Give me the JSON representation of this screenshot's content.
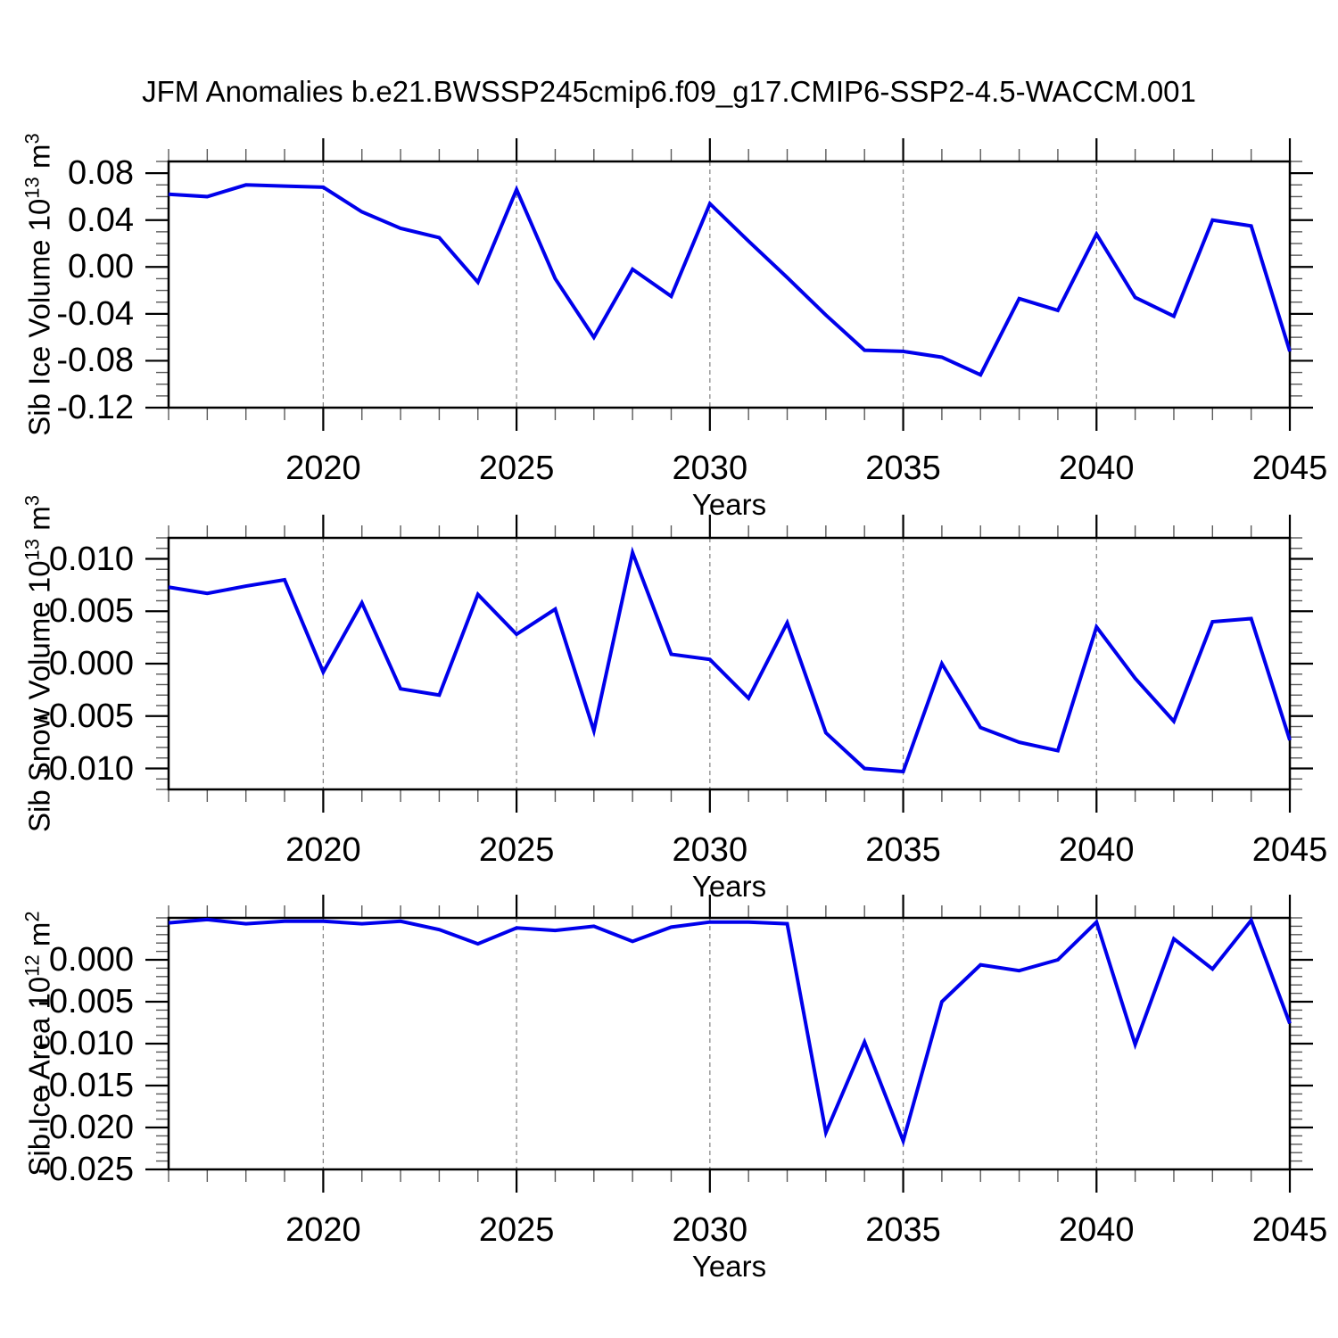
{
  "title": "JFM Anomalies b.e21.BWSSP245cmip6.f09_g17.CMIP6-SSP2-4.5-WACCM.001",
  "chart_data": {
    "type": "line",
    "title": "JFM Anomalies b.e21.BWSSP245cmip6.f09_g17.CMIP6-SSP2-4.5-WACCM.001",
    "xlabel": "Years",
    "line_color": "#0000EB",
    "grid": "vertical-dashed",
    "x": [
      2016,
      2017,
      2018,
      2019,
      2020,
      2021,
      2022,
      2023,
      2024,
      2025,
      2026,
      2027,
      2028,
      2029,
      2030,
      2031,
      2032,
      2033,
      2034,
      2035,
      2036,
      2037,
      2038,
      2039,
      2040,
      2041,
      2042,
      2043,
      2044,
      2045
    ],
    "xlim": [
      2016,
      2045
    ],
    "x_major_ticks": [
      2020,
      2025,
      2030,
      2035,
      2040,
      2045
    ],
    "x_major_labels": [
      "2020",
      "2025",
      "2030",
      "2035",
      "2040",
      "2045"
    ],
    "x_gridlines": [
      2020,
      2025,
      2030,
      2035,
      2040
    ],
    "x_minor_step": 1,
    "panels": [
      {
        "name": "sib-ice-volume",
        "ylabel": "Sib Ice Volume 10¹³ m³",
        "ylabel_parts": {
          "base": "Sib Ice Volume 10",
          "exp": "13",
          "unit": " m",
          "unit_exp": "3"
        },
        "ylim": [
          -0.12,
          0.09
        ],
        "ytick_values": [
          0.08,
          0.04,
          0.0,
          -0.04,
          -0.08,
          -0.12
        ],
        "ytick_labels": [
          "0.08",
          "0.04",
          "0.00",
          "-0.04",
          "-0.08",
          "-0.12"
        ],
        "y_minor_step": 0.01,
        "values": [
          0.062,
          0.06,
          0.07,
          0.069,
          0.068,
          0.047,
          0.033,
          0.025,
          -0.013,
          0.066,
          -0.01,
          -0.06,
          -0.002,
          -0.025,
          0.054,
          0.022,
          -0.009,
          -0.041,
          -0.071,
          -0.072,
          -0.077,
          -0.092,
          -0.027,
          -0.037,
          0.028,
          -0.026,
          -0.042,
          0.04,
          0.035,
          -0.072
        ]
      },
      {
        "name": "sib-snow-volume",
        "ylabel": "Sib Snow Volume 10¹³ m³",
        "ylabel_parts": {
          "base": "Sib Snow Volume 10",
          "exp": "13",
          "unit": " m",
          "unit_exp": "3"
        },
        "ylim": [
          -0.012,
          0.012
        ],
        "ytick_values": [
          0.01,
          0.005,
          0.0,
          -0.005,
          -0.01
        ],
        "ytick_labels": [
          "0.010",
          "0.005",
          "0.000",
          "-0.005",
          "-0.010"
        ],
        "y_minor_step": 0.001,
        "values": [
          0.0073,
          0.0067,
          0.0074,
          0.008,
          -0.0008,
          0.0058,
          -0.0024,
          -0.003,
          0.0066,
          0.0028,
          0.0052,
          -0.0064,
          0.0106,
          0.0009,
          0.0004,
          -0.0033,
          0.0039,
          -0.0066,
          -0.01,
          -0.0103,
          0.0,
          -0.0061,
          -0.0075,
          -0.0083,
          0.0035,
          -0.0014,
          -0.0055,
          0.004,
          0.0043,
          -0.0073
        ]
      },
      {
        "name": "sib-ice-area",
        "ylabel": "Sib Ice Area 10¹² m²",
        "ylabel_parts": {
          "base": "Sib Ice Area 10",
          "exp": "12",
          "unit": " m",
          "unit_exp": "2"
        },
        "ylim": [
          -0.025,
          0.005
        ],
        "ytick_values": [
          0.0,
          -0.005,
          -0.01,
          -0.015,
          -0.02,
          -0.025
        ],
        "ytick_labels": [
          "0.000",
          "-0.005",
          "-0.010",
          "-0.015",
          "-0.020",
          "-0.025"
        ],
        "y_minor_step": 0.001,
        "values": [
          0.0044,
          0.0048,
          0.0043,
          0.0046,
          0.0046,
          0.0043,
          0.0046,
          0.0036,
          0.0019,
          0.0038,
          0.0035,
          0.004,
          0.0022,
          0.0039,
          0.0045,
          0.0045,
          0.0043,
          -0.0206,
          -0.0098,
          -0.0216,
          -0.005,
          -0.0006,
          -0.0013,
          0.0,
          0.0045,
          -0.0101,
          0.0025,
          -0.0011,
          0.0047,
          -0.0076
        ]
      }
    ]
  }
}
